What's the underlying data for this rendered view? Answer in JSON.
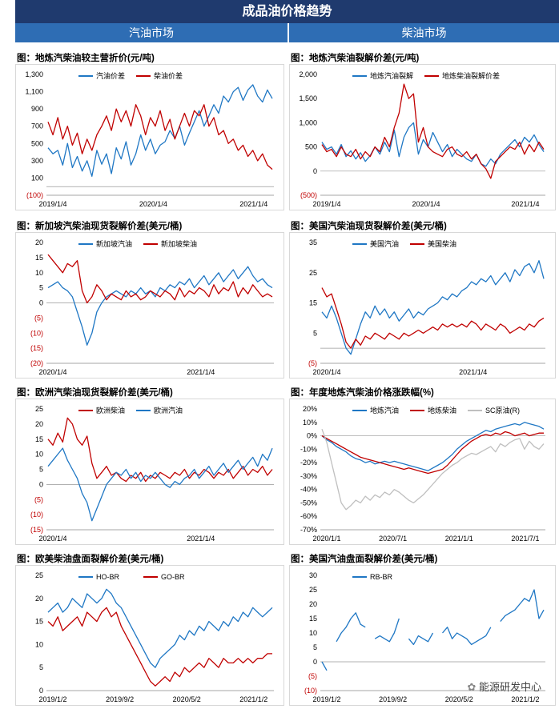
{
  "header": {
    "title": "成品油价格趋势",
    "left": "汽油市场",
    "right": "柴油市场"
  },
  "watermark": "能源研发中心",
  "charts": [
    {
      "id": "c1",
      "title": "图：地炼汽柴油较主营折价(元/吨)",
      "chart_data": {
        "type": "line",
        "ylim": [
          -100,
          1300
        ],
        "yticks": [
          -100,
          100,
          300,
          500,
          700,
          900,
          1100,
          1300
        ],
        "xticks": [
          "2019/1/4",
          "2020/1/4",
          "2021/1/4"
        ],
        "series": [
          {
            "name": "汽油价差",
            "color": "#1f77c4",
            "values": [
              450,
              380,
              420,
              250,
              500,
              220,
              350,
              180,
              300,
              120,
              420,
              260,
              380,
              150,
              450,
              320,
              520,
              250,
              380,
              600,
              420,
              550,
              380,
              480,
              520,
              650,
              560,
              700,
              480,
              620,
              750,
              880,
              700,
              820,
              950,
              850,
              1050,
              980,
              1100,
              1150,
              1000,
              1120,
              1180,
              1050,
              980,
              1120,
              1020
            ]
          },
          {
            "name": "柴油价差",
            "color": "#c00000",
            "values": [
              750,
              600,
              800,
              550,
              700,
              480,
              620,
              380,
              550,
              420,
              600,
              700,
              820,
              650,
              900,
              750,
              880,
              700,
              950,
              820,
              600,
              800,
              700,
              880,
              650,
              780,
              550,
              700,
              850,
              700,
              880,
              820,
              950,
              700,
              800,
              600,
              650,
              500,
              550,
              420,
              480,
              350,
              420,
              300,
              380,
              250,
              200
            ]
          }
        ]
      }
    },
    {
      "id": "c2",
      "title": "图：地炼汽柴油裂解价差(元/吨)",
      "chart_data": {
        "type": "line",
        "ylim": [
          -500,
          2000
        ],
        "yticks": [
          -500,
          0,
          500,
          1000,
          1500,
          2000
        ],
        "xticks": [
          "2019/1/4",
          "2020/1/4",
          "2021/1/4"
        ],
        "series": [
          {
            "name": "地炼汽油裂解",
            "color": "#1f77c4",
            "values": [
              600,
              450,
              500,
              350,
              550,
              300,
              420,
              250,
              380,
              200,
              320,
              500,
              350,
              600,
              400,
              850,
              300,
              700,
              900,
              1000,
              350,
              650,
              500,
              800,
              600,
              400,
              550,
              300,
              450,
              350,
              250,
              200,
              350,
              150,
              100,
              250,
              150,
              350,
              450,
              550,
              650,
              500,
              700,
              600,
              750,
              550,
              400
            ]
          },
          {
            "name": "地炼柴油裂解价差",
            "color": "#c00000",
            "values": [
              550,
              400,
              450,
              300,
              500,
              350,
              300,
              450,
              250,
              400,
              300,
              500,
              400,
              700,
              500,
              900,
              1200,
              1800,
              1500,
              1600,
              600,
              900,
              500,
              400,
              350,
              300,
              450,
              500,
              350,
              300,
              400,
              250,
              350,
              150,
              50,
              -150,
              200,
              300,
              400,
              500,
              450,
              600,
              350,
              550,
              400,
              600,
              450
            ]
          }
        ]
      }
    },
    {
      "id": "c3",
      "title": "图：新加坡汽柴油现货裂解价差(美元/桶)",
      "chart_data": {
        "type": "line",
        "ylim": [
          -20,
          20
        ],
        "yticks": [
          -20,
          -15,
          -10,
          -5,
          0,
          5,
          10,
          15,
          20
        ],
        "xticks": [
          "2020/1/4",
          "2021/1/4"
        ],
        "series": [
          {
            "name": "新加坡汽油",
            "color": "#1f77c4",
            "values": [
              5,
              6,
              7,
              5,
              4,
              2,
              -3,
              -8,
              -14,
              -10,
              -3,
              0,
              2,
              3,
              4,
              3,
              2,
              4,
              3,
              5,
              3,
              4,
              2,
              5,
              4,
              6,
              5,
              7,
              6,
              8,
              5,
              7,
              9,
              6,
              8,
              10,
              7,
              9,
              11,
              8,
              10,
              12,
              9,
              7,
              8,
              6,
              5
            ]
          },
          {
            "name": "新加坡柴油",
            "color": "#c00000",
            "values": [
              16,
              14,
              12,
              10,
              13,
              12,
              14,
              4,
              0,
              2,
              6,
              4,
              1,
              3,
              2,
              1,
              4,
              2,
              3,
              1,
              2,
              4,
              3,
              2,
              4,
              3,
              1,
              5,
              2,
              4,
              3,
              5,
              4,
              2,
              6,
              3,
              5,
              4,
              7,
              2,
              5,
              3,
              6,
              4,
              2,
              3,
              2
            ]
          }
        ]
      }
    },
    {
      "id": "c4",
      "title": "图：美国汽柴油现货裂解价差(美元/桶)",
      "chart_data": {
        "type": "line",
        "ylim": [
          -5,
          35
        ],
        "yticks": [
          -5,
          5,
          15,
          25,
          35
        ],
        "xticks": [
          "2020/1/4",
          "2021/1/4"
        ],
        "series": [
          {
            "name": "美国汽油",
            "color": "#1f77c4",
            "values": [
              12,
              10,
              14,
              10,
              5,
              0,
              -2,
              3,
              8,
              12,
              10,
              14,
              11,
              13,
              10,
              12,
              9,
              11,
              13,
              10,
              12,
              11,
              13,
              14,
              15,
              17,
              16,
              18,
              17,
              19,
              20,
              22,
              21,
              23,
              22,
              24,
              21,
              23,
              25,
              22,
              26,
              24,
              27,
              28,
              25,
              29,
              23
            ]
          },
          {
            "name": "美国柴油",
            "color": "#c00000",
            "values": [
              20,
              17,
              18,
              13,
              8,
              2,
              0,
              3,
              1,
              4,
              3,
              5,
              4,
              3,
              5,
              4,
              3,
              5,
              4,
              5,
              6,
              5,
              6,
              7,
              6,
              8,
              7,
              8,
              7,
              8,
              7,
              9,
              8,
              6,
              8,
              7,
              6,
              8,
              7,
              5,
              6,
              7,
              6,
              8,
              7,
              9,
              10
            ]
          }
        ]
      }
    },
    {
      "id": "c5",
      "title": "图：欧洲汽柴油现货裂解价差(美元/桶)",
      "chart_data": {
        "type": "line",
        "ylim": [
          -15,
          25
        ],
        "yticks": [
          -15,
          -10,
          -5,
          0,
          5,
          10,
          15,
          20,
          25
        ],
        "xticks": [
          "2020/1/4",
          "2021/1/4"
        ],
        "series": [
          {
            "name": "欧洲柴油",
            "color": "#c00000",
            "values": [
              15,
              13,
              17,
              14,
              22,
              20,
              15,
              13,
              16,
              7,
              2,
              4,
              6,
              3,
              4,
              2,
              1,
              3,
              2,
              4,
              1,
              3,
              2,
              4,
              3,
              2,
              4,
              3,
              5,
              2,
              4,
              3,
              5,
              4,
              2,
              4,
              3,
              5,
              2,
              4,
              6,
              3,
              5,
              4,
              6,
              3,
              5
            ]
          },
          {
            "name": "欧洲汽油",
            "color": "#1f77c4",
            "values": [
              6,
              8,
              10,
              12,
              8,
              5,
              2,
              -3,
              -6,
              -12,
              -8,
              -4,
              0,
              2,
              4,
              3,
              5,
              2,
              4,
              1,
              3,
              2,
              4,
              2,
              0,
              -1,
              1,
              0,
              2,
              3,
              5,
              2,
              4,
              6,
              3,
              5,
              7,
              4,
              6,
              8,
              5,
              7,
              9,
              6,
              10,
              8,
              12
            ]
          }
        ]
      }
    },
    {
      "id": "c6",
      "title": "图：年度地炼汽柴油价格涨跌幅(%)",
      "chart_data": {
        "type": "line",
        "ylim": [
          -70,
          20
        ],
        "yticks": [
          -70,
          -60,
          -50,
          -40,
          -30,
          -20,
          -10,
          0,
          10,
          20
        ],
        "ytick_suffix": "%",
        "xticks": [
          "2020/1/1",
          "2020/7/1",
          "2021/1/1",
          "2021/7/1"
        ],
        "series": [
          {
            "name": "地炼汽油",
            "color": "#1f77c4",
            "values": [
              0,
              -3,
              -5,
              -8,
              -10,
              -12,
              -15,
              -17,
              -18,
              -20,
              -19,
              -21,
              -20,
              -19,
              -20,
              -19,
              -20,
              -21,
              -22,
              -23,
              -24,
              -25,
              -26,
              -24,
              -22,
              -20,
              -17,
              -14,
              -10,
              -7,
              -4,
              -2,
              0,
              2,
              4,
              3,
              5,
              6,
              7,
              8,
              9,
              8,
              10,
              9,
              8,
              7,
              5
            ]
          },
          {
            "name": "地炼柴油",
            "color": "#c00000",
            "values": [
              0,
              -2,
              -4,
              -6,
              -8,
              -10,
              -12,
              -14,
              -16,
              -17,
              -18,
              -19,
              -20,
              -21,
              -22,
              -23,
              -24,
              -25,
              -24,
              -25,
              -26,
              -27,
              -28,
              -27,
              -26,
              -25,
              -22,
              -18,
              -14,
              -10,
              -7,
              -4,
              -2,
              0,
              1,
              0,
              2,
              1,
              3,
              2,
              0,
              1,
              2,
              0,
              1,
              2,
              2
            ]
          },
          {
            "name": "SC原油(R)",
            "color": "#bfbfbf",
            "values": [
              5,
              -5,
              -20,
              -35,
              -50,
              -55,
              -52,
              -48,
              -50,
              -45,
              -48,
              -44,
              -46,
              -42,
              -44,
              -40,
              -42,
              -45,
              -48,
              -50,
              -47,
              -44,
              -40,
              -36,
              -32,
              -28,
              -25,
              -22,
              -20,
              -17,
              -15,
              -13,
              -14,
              -12,
              -10,
              -8,
              -12,
              -6,
              -8,
              -5,
              -3,
              -2,
              -10,
              -4,
              -8,
              -10,
              -6
            ]
          }
        ]
      }
    },
    {
      "id": "c7",
      "title": "图：欧美柴油盘面裂解价差(美元/桶)",
      "chart_data": {
        "type": "line",
        "ylim": [
          0,
          25
        ],
        "yticks": [
          0,
          5,
          10,
          15,
          20,
          25
        ],
        "xticks": [
          "2019/1/2",
          "2019/9/2",
          "2020/5/2",
          "2021/1/2"
        ],
        "series": [
          {
            "name": "HO-BR",
            "color": "#1f77c4",
            "values": [
              17,
              18,
              19,
              17,
              18,
              20,
              19,
              18,
              21,
              20,
              19,
              20,
              22,
              21,
              19,
              18,
              16,
              14,
              12,
              10,
              8,
              6,
              5,
              7,
              8,
              9,
              10,
              12,
              11,
              13,
              12,
              14,
              13,
              15,
              14,
              13,
              15,
              14,
              16,
              15,
              17,
              16,
              18,
              17,
              16,
              17,
              18
            ]
          },
          {
            "name": "GO-BR",
            "color": "#c00000",
            "values": [
              15,
              14,
              16,
              13,
              14,
              15,
              16,
              14,
              17,
              16,
              15,
              17,
              18,
              16,
              17,
              14,
              12,
              10,
              8,
              6,
              4,
              2,
              1,
              2,
              3,
              2,
              4,
              3,
              5,
              4,
              5,
              6,
              5,
              7,
              6,
              5,
              7,
              6,
              6,
              7,
              6,
              7,
              6,
              7,
              7,
              8,
              8
            ]
          }
        ]
      }
    },
    {
      "id": "c8",
      "title": "图：美国汽油盘面裂解价差(美元/桶)",
      "chart_data": {
        "type": "line",
        "ylim": [
          -10,
          30
        ],
        "yticks": [
          -10,
          -5,
          0,
          5,
          10,
          15,
          20,
          25,
          30
        ],
        "xticks": [
          "2019/1/2",
          "2019/9/2",
          "2020/5/2",
          "2021/1/2"
        ],
        "series": [
          {
            "name": "RB-BR",
            "color": "#1f77c4",
            "values": [
              0,
              -3,
              null,
              7,
              10,
              12,
              15,
              17,
              13,
              12,
              null,
              8,
              9,
              8,
              7,
              10,
              15,
              null,
              8,
              6,
              9,
              8,
              7,
              10,
              null,
              10,
              12,
              8,
              10,
              9,
              8,
              6,
              7,
              8,
              9,
              12,
              null,
              14,
              16,
              17,
              18,
              20,
              22,
              21,
              25,
              15,
              18
            ]
          }
        ]
      }
    }
  ]
}
